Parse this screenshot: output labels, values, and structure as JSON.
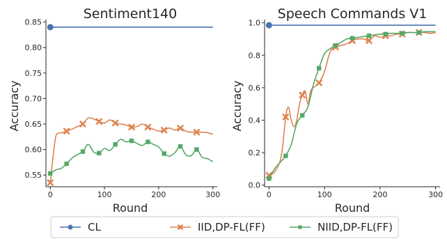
{
  "chart_data": [
    {
      "type": "line",
      "title": "Sentiment140",
      "xlabel": "Round",
      "ylabel": "Accuracy",
      "xlim": [
        -8,
        308
      ],
      "ylim": [
        0.527,
        0.855
      ],
      "xticks": [
        0,
        100,
        200,
        300
      ],
      "yticks": [
        0.55,
        0.6,
        0.65,
        0.7,
        0.75,
        0.8,
        0.85
      ],
      "ytick_labels": [
        "0.55",
        "0.60",
        "0.65",
        "0.70",
        "0.75",
        "0.80",
        "0.85"
      ],
      "series": [
        {
          "name": "CL",
          "x": [
            0,
            300
          ],
          "y": [
            0.84,
            0.84
          ],
          "markers_x": [
            0
          ],
          "markers_y": [
            0.84
          ]
        },
        {
          "name": "IID,DP-FL(FF)",
          "x": [
            0,
            5,
            10,
            15,
            20,
            25,
            30,
            40,
            50,
            60,
            70,
            80,
            90,
            100,
            110,
            120,
            130,
            140,
            150,
            160,
            170,
            180,
            190,
            200,
            210,
            220,
            230,
            240,
            250,
            260,
            270,
            280,
            290,
            300
          ],
          "y": [
            0.535,
            0.585,
            0.625,
            0.632,
            0.633,
            0.634,
            0.636,
            0.64,
            0.645,
            0.65,
            0.662,
            0.66,
            0.655,
            0.652,
            0.658,
            0.652,
            0.65,
            0.648,
            0.644,
            0.645,
            0.65,
            0.644,
            0.64,
            0.636,
            0.638,
            0.642,
            0.638,
            0.642,
            0.636,
            0.634,
            0.634,
            0.634,
            0.633,
            0.63
          ],
          "markers_x": [
            0,
            30,
            60,
            90,
            120,
            150,
            180,
            210,
            240,
            270
          ],
          "markers_y": [
            0.535,
            0.636,
            0.65,
            0.655,
            0.652,
            0.644,
            0.644,
            0.638,
            0.642,
            0.634
          ]
        },
        {
          "name": "NIID,DP-FL(FF)",
          "x": [
            0,
            10,
            20,
            30,
            40,
            50,
            60,
            70,
            80,
            90,
            100,
            110,
            120,
            130,
            140,
            150,
            160,
            170,
            180,
            190,
            200,
            210,
            220,
            230,
            240,
            250,
            260,
            270,
            280,
            290,
            300
          ],
          "y": [
            0.553,
            0.56,
            0.563,
            0.572,
            0.583,
            0.59,
            0.596,
            0.61,
            0.595,
            0.593,
            0.602,
            0.598,
            0.61,
            0.62,
            0.615,
            0.617,
            0.612,
            0.608,
            0.615,
            0.61,
            0.605,
            0.592,
            0.587,
            0.594,
            0.606,
            0.59,
            0.588,
            0.6,
            0.585,
            0.582,
            0.576
          ],
          "markers_x": [
            0,
            30,
            60,
            90,
            120,
            150,
            180,
            210,
            240,
            270
          ],
          "markers_y": [
            0.553,
            0.572,
            0.596,
            0.593,
            0.61,
            0.617,
            0.615,
            0.592,
            0.606,
            0.6
          ]
        }
      ]
    },
    {
      "type": "line",
      "title": "Speech Commands V1",
      "xlabel": "Round",
      "ylabel": "Accuracy",
      "xlim": [
        -8,
        308
      ],
      "ylim": [
        -0.01,
        1.02
      ],
      "xticks": [
        0,
        100,
        200,
        300
      ],
      "yticks": [
        0.0,
        0.2,
        0.4,
        0.6,
        0.8,
        1.0
      ],
      "ytick_labels": [
        "0.0",
        "0.2",
        "0.4",
        "0.6",
        "0.8",
        "1.0"
      ],
      "series": [
        {
          "name": "CL",
          "x": [
            0,
            300
          ],
          "y": [
            0.985,
            0.985
          ],
          "markers_x": [
            0
          ],
          "markers_y": [
            0.985
          ]
        },
        {
          "name": "IID,DP-FL(FF)",
          "x": [
            0,
            10,
            20,
            25,
            30,
            35,
            40,
            45,
            50,
            55,
            60,
            65,
            70,
            75,
            80,
            90,
            100,
            110,
            120,
            130,
            140,
            150,
            160,
            170,
            180,
            190,
            200,
            210,
            220,
            230,
            240,
            250,
            260,
            270,
            280,
            290,
            300
          ],
          "y": [
            0.06,
            0.08,
            0.15,
            0.25,
            0.42,
            0.48,
            0.4,
            0.36,
            0.4,
            0.5,
            0.555,
            0.58,
            0.5,
            0.58,
            0.6,
            0.63,
            0.7,
            0.82,
            0.85,
            0.86,
            0.87,
            0.89,
            0.9,
            0.9,
            0.89,
            0.92,
            0.91,
            0.92,
            0.92,
            0.93,
            0.93,
            0.94,
            0.94,
            0.94,
            0.94,
            0.935,
            0.94
          ],
          "markers_x": [
            0,
            30,
            60,
            90,
            120,
            150,
            180,
            210,
            240,
            270
          ],
          "markers_y": [
            0.06,
            0.42,
            0.555,
            0.63,
            0.85,
            0.89,
            0.89,
            0.92,
            0.93,
            0.94
          ]
        },
        {
          "name": "NIID,DP-FL(FF)",
          "x": [
            0,
            10,
            20,
            30,
            40,
            50,
            60,
            70,
            80,
            90,
            100,
            110,
            120,
            130,
            140,
            150,
            160,
            170,
            180,
            190,
            200,
            210,
            220,
            230,
            240,
            250,
            260,
            270,
            280,
            290,
            300
          ],
          "y": [
            0.04,
            0.1,
            0.14,
            0.18,
            0.25,
            0.38,
            0.43,
            0.48,
            0.62,
            0.72,
            0.81,
            0.84,
            0.86,
            0.88,
            0.9,
            0.905,
            0.91,
            0.915,
            0.92,
            0.925,
            0.93,
            0.93,
            0.935,
            0.935,
            0.935,
            0.94,
            0.94,
            0.94,
            0.945,
            0.945,
            0.945
          ],
          "markers_x": [
            0,
            30,
            60,
            90,
            120,
            150,
            180,
            210,
            240,
            270
          ],
          "markers_y": [
            0.04,
            0.18,
            0.43,
            0.72,
            0.86,
            0.905,
            0.92,
            0.93,
            0.935,
            0.94
          ]
        }
      ]
    }
  ],
  "legend": {
    "placement": "bottom",
    "items": [
      {
        "label": "CL",
        "color": "#4c72b0",
        "marker": "circle"
      },
      {
        "label": "IID,DP-FL(FF)",
        "color": "#dd8452",
        "marker": "x"
      },
      {
        "label": "NIID,DP-FL(FF)",
        "color": "#55a868",
        "marker": "square"
      }
    ]
  },
  "colors": {
    "CL": "#4c72b0",
    "IID,DP-FL(FF)": "#dd8452",
    "NIID,DP-FL(FF)": "#55a868"
  }
}
